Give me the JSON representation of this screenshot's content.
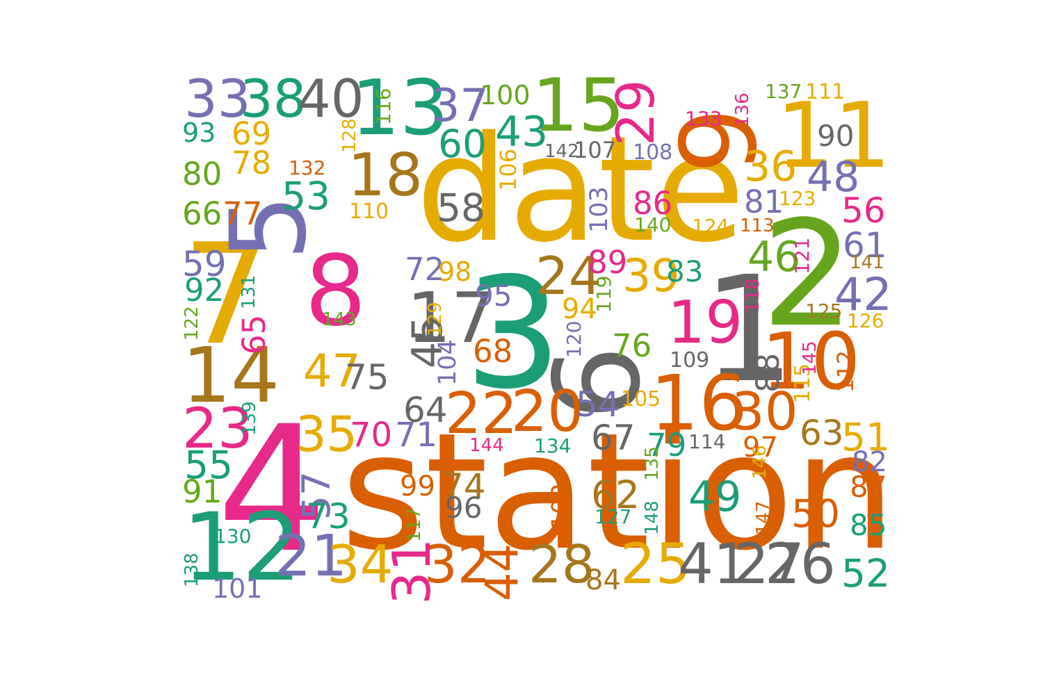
{
  "palette": [
    "#1b9e77",
    "#d95f02",
    "#7570b3",
    "#e7298a",
    "#66a61e",
    "#e6ab02",
    "#a6761d",
    "#666666"
  ],
  "words": [
    {
      "text": "date",
      "c": 5
    },
    {
      "text": "station",
      "c": 1
    },
    {
      "text": "4",
      "c": 3
    },
    {
      "text": "3",
      "c": 0
    },
    {
      "text": "8",
      "c": 3
    },
    {
      "text": "1",
      "c": 7
    },
    {
      "text": "2",
      "c": 4
    },
    {
      "text": "7",
      "c": 5
    },
    {
      "text": "5",
      "c": 2
    },
    {
      "text": "6",
      "c": 7
    },
    {
      "text": "9",
      "c": 1
    },
    {
      "text": "10",
      "c": 1
    },
    {
      "text": "11",
      "c": 5
    },
    {
      "text": "12",
      "c": 0
    },
    {
      "text": "13",
      "c": 0
    },
    {
      "text": "14",
      "c": 6
    },
    {
      "text": "15",
      "c": 4
    },
    {
      "text": "16",
      "c": 1
    },
    {
      "text": "17",
      "c": 7
    },
    {
      "text": "18",
      "c": 6
    },
    {
      "text": "19",
      "c": 3
    },
    {
      "text": "20",
      "c": 1
    },
    {
      "text": "21",
      "c": 2
    },
    {
      "text": "22",
      "c": 1
    },
    {
      "text": "23",
      "c": 3
    },
    {
      "text": "24",
      "c": 6
    },
    {
      "text": "25",
      "c": 5
    },
    {
      "text": "26",
      "c": 7
    },
    {
      "text": "27",
      "c": 7
    },
    {
      "text": "28",
      "c": 6
    },
    {
      "text": "29",
      "c": 3
    },
    {
      "text": "30",
      "c": 1
    },
    {
      "text": "31",
      "c": 3
    },
    {
      "text": "32",
      "c": 1
    },
    {
      "text": "33",
      "c": 2
    },
    {
      "text": "34",
      "c": 5
    },
    {
      "text": "35",
      "c": 5
    },
    {
      "text": "36",
      "c": 5
    },
    {
      "text": "37",
      "c": 2
    },
    {
      "text": "38",
      "c": 0
    },
    {
      "text": "39",
      "c": 5
    },
    {
      "text": "40",
      "c": 7
    },
    {
      "text": "41",
      "c": 7
    },
    {
      "text": "42",
      "c": 2
    },
    {
      "text": "43",
      "c": 0
    },
    {
      "text": "44",
      "c": 1
    },
    {
      "text": "45",
      "c": 7
    },
    {
      "text": "46",
      "c": 4
    },
    {
      "text": "47",
      "c": 5
    },
    {
      "text": "48",
      "c": 2
    },
    {
      "text": "49",
      "c": 0
    },
    {
      "text": "50",
      "c": 1
    },
    {
      "text": "51",
      "c": 5
    },
    {
      "text": "52",
      "c": 0
    },
    {
      "text": "53",
      "c": 0
    },
    {
      "text": "54",
      "c": 2
    },
    {
      "text": "55",
      "c": 0
    },
    {
      "text": "56",
      "c": 3
    },
    {
      "text": "57",
      "c": 2
    },
    {
      "text": "58",
      "c": 7
    },
    {
      "text": "59",
      "c": 2
    },
    {
      "text": "60",
      "c": 0
    },
    {
      "text": "61",
      "c": 2
    },
    {
      "text": "62",
      "c": 6
    },
    {
      "text": "63",
      "c": 6
    },
    {
      "text": "64",
      "c": 7
    },
    {
      "text": "65",
      "c": 3
    },
    {
      "text": "66",
      "c": 4
    },
    {
      "text": "67",
      "c": 7
    },
    {
      "text": "68",
      "c": 1
    },
    {
      "text": "69",
      "c": 5
    },
    {
      "text": "70",
      "c": 3
    },
    {
      "text": "71",
      "c": 2
    },
    {
      "text": "72",
      "c": 2
    },
    {
      "text": "73",
      "c": 0
    },
    {
      "text": "74",
      "c": 6
    },
    {
      "text": "75",
      "c": 7
    },
    {
      "text": "76",
      "c": 4
    },
    {
      "text": "77",
      "c": 1
    },
    {
      "text": "78",
      "c": 5
    },
    {
      "text": "79",
      "c": 0
    },
    {
      "text": "80",
      "c": 4
    },
    {
      "text": "81",
      "c": 2
    },
    {
      "text": "82",
      "c": 2
    },
    {
      "text": "83",
      "c": 0
    },
    {
      "text": "84",
      "c": 6
    },
    {
      "text": "85",
      "c": 0
    },
    {
      "text": "86",
      "c": 3
    },
    {
      "text": "87",
      "c": 1
    },
    {
      "text": "88",
      "c": 7
    },
    {
      "text": "89",
      "c": 3
    },
    {
      "text": "90",
      "c": 7
    },
    {
      "text": "91",
      "c": 4
    },
    {
      "text": "92",
      "c": 0
    },
    {
      "text": "93",
      "c": 0
    },
    {
      "text": "94",
      "c": 5
    },
    {
      "text": "95",
      "c": 2
    },
    {
      "text": "96",
      "c": 7
    },
    {
      "text": "97",
      "c": 1
    },
    {
      "text": "98",
      "c": 5
    },
    {
      "text": "99",
      "c": 1
    },
    {
      "text": "100",
      "c": 4
    },
    {
      "text": "101",
      "c": 2
    },
    {
      "text": "102",
      "c": 1
    },
    {
      "text": "103",
      "c": 2
    },
    {
      "text": "104",
      "c": 2
    },
    {
      "text": "105",
      "c": 5
    },
    {
      "text": "106",
      "c": 5
    },
    {
      "text": "107",
      "c": 7
    },
    {
      "text": "108",
      "c": 2
    },
    {
      "text": "109",
      "c": 7
    },
    {
      "text": "110",
      "c": 5
    },
    {
      "text": "111",
      "c": 5
    },
    {
      "text": "112",
      "c": 1
    },
    {
      "text": "113",
      "c": 1
    },
    {
      "text": "114",
      "c": 7
    },
    {
      "text": "115",
      "c": 5
    },
    {
      "text": "116",
      "c": 4
    },
    {
      "text": "117",
      "c": 4
    },
    {
      "text": "118",
      "c": 3
    },
    {
      "text": "119",
      "c": 4
    },
    {
      "text": "120",
      "c": 2
    },
    {
      "text": "121",
      "c": 3
    },
    {
      "text": "122",
      "c": 4
    },
    {
      "text": "123",
      "c": 5
    },
    {
      "text": "124",
      "c": 5
    },
    {
      "text": "125",
      "c": 6
    },
    {
      "text": "126",
      "c": 5
    },
    {
      "text": "127",
      "c": 0
    },
    {
      "text": "128",
      "c": 5
    },
    {
      "text": "129",
      "c": 5
    },
    {
      "text": "130",
      "c": 0
    },
    {
      "text": "131",
      "c": 0
    },
    {
      "text": "132",
      "c": 1
    },
    {
      "text": "133",
      "c": 3
    },
    {
      "text": "134",
      "c": 0
    },
    {
      "text": "135",
      "c": 4
    },
    {
      "text": "136",
      "c": 3
    },
    {
      "text": "137",
      "c": 4
    },
    {
      "text": "138",
      "c": 0
    },
    {
      "text": "139",
      "c": 0
    },
    {
      "text": "140",
      "c": 4
    },
    {
      "text": "141",
      "c": 6
    },
    {
      "text": "142",
      "c": 7
    },
    {
      "text": "143",
      "c": 4
    },
    {
      "text": "144",
      "c": 3
    },
    {
      "text": "145",
      "c": 3
    },
    {
      "text": "146",
      "c": 5
    },
    {
      "text": "147",
      "c": 1
    },
    {
      "text": "148",
      "c": 0
    }
  ]
}
